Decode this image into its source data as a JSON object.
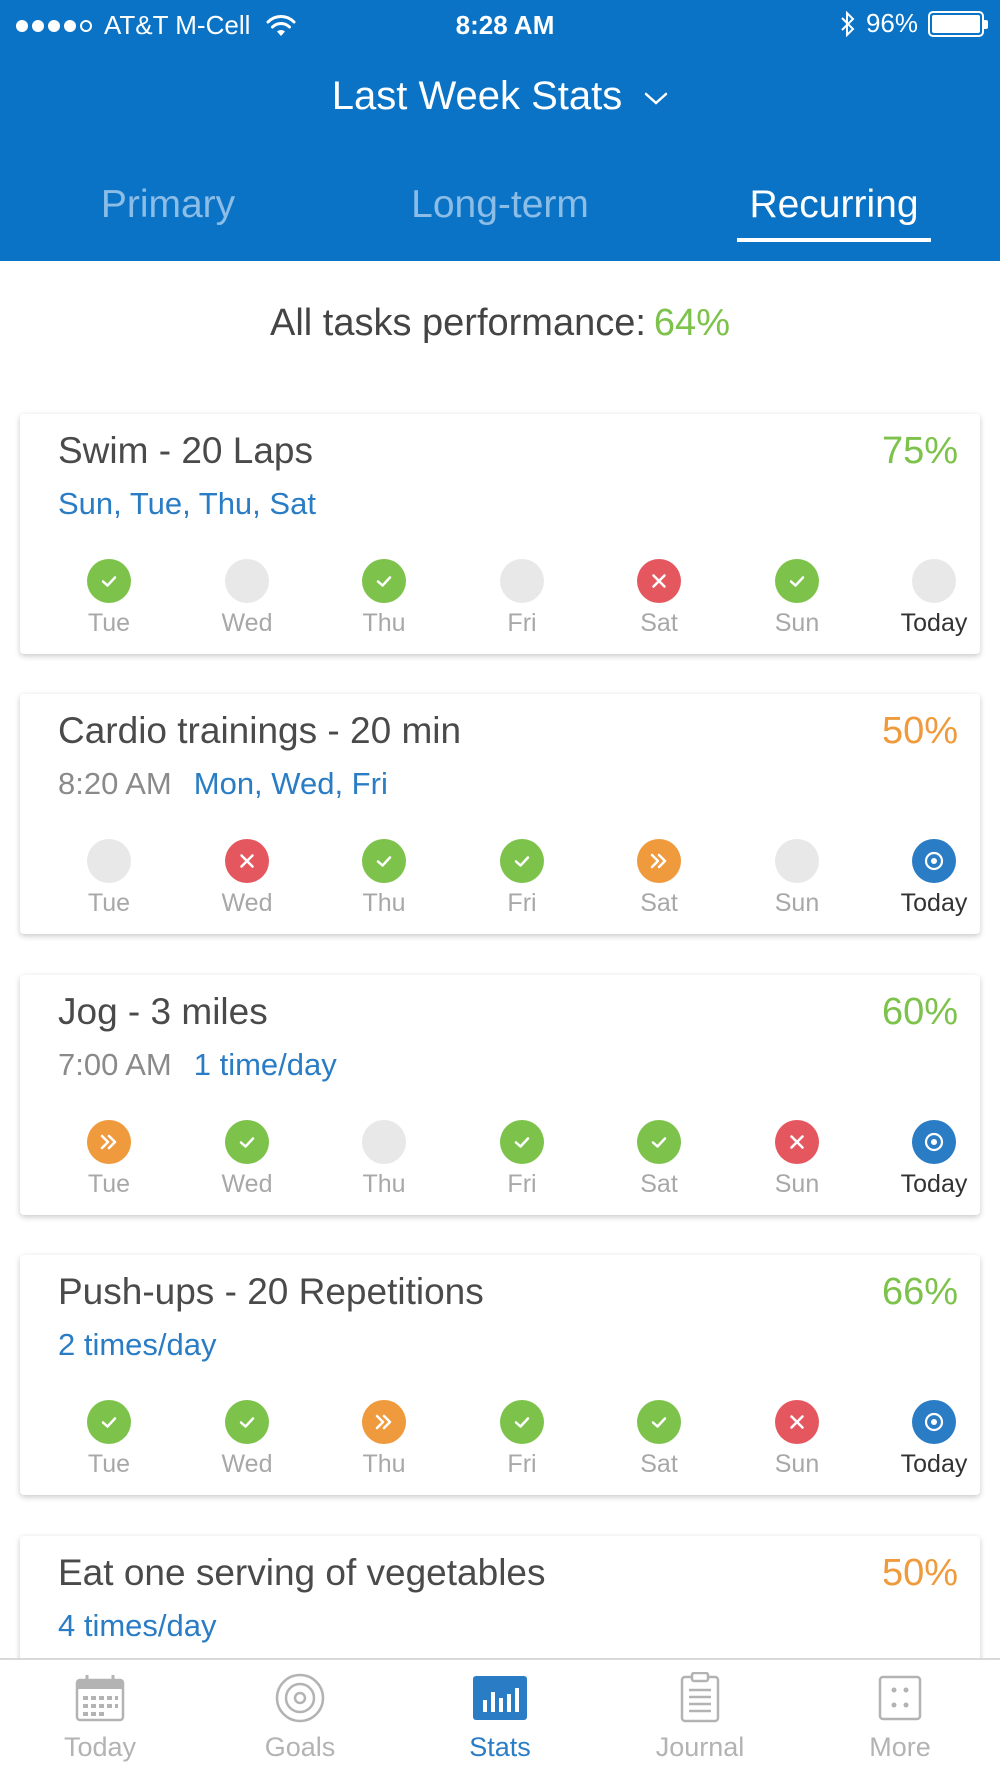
{
  "status_bar": {
    "carrier": "AT&T M-Cell",
    "time": "8:28 AM",
    "battery": "96%",
    "signal_dots_filled": 4
  },
  "header": {
    "title": "Last Week Stats",
    "tabs": [
      {
        "label": "Primary",
        "active": false
      },
      {
        "label": "Long-term",
        "active": false
      },
      {
        "label": "Recurring",
        "active": true
      }
    ]
  },
  "performance": {
    "label": "All tasks performance:",
    "value": "64%"
  },
  "tasks": [
    {
      "title": "Swim - 20 Laps",
      "percent": "75%",
      "percent_color": "#7dc24b",
      "time": "",
      "schedule": "Sun, Tue, Thu, Sat",
      "days": [
        {
          "label": "Tue",
          "status": "done"
        },
        {
          "label": "Wed",
          "status": "none"
        },
        {
          "label": "Thu",
          "status": "done"
        },
        {
          "label": "Fri",
          "status": "none"
        },
        {
          "label": "Sat",
          "status": "missed"
        },
        {
          "label": "Sun",
          "status": "done"
        },
        {
          "label": "Today",
          "status": "none"
        }
      ]
    },
    {
      "title": "Cardio trainings - 20 min",
      "percent": "50%",
      "percent_color": "#ef9a3c",
      "time": "8:20 AM",
      "schedule": "Mon, Wed, Fri",
      "days": [
        {
          "label": "Tue",
          "status": "none"
        },
        {
          "label": "Wed",
          "status": "missed"
        },
        {
          "label": "Thu",
          "status": "done"
        },
        {
          "label": "Fri",
          "status": "done"
        },
        {
          "label": "Sat",
          "status": "skipped"
        },
        {
          "label": "Sun",
          "status": "none"
        },
        {
          "label": "Today",
          "status": "today"
        }
      ]
    },
    {
      "title": "Jog - 3 miles",
      "percent": "60%",
      "percent_color": "#7dc24b",
      "time": "7:00 AM",
      "schedule": "1 time/day",
      "days": [
        {
          "label": "Tue",
          "status": "skipped"
        },
        {
          "label": "Wed",
          "status": "done"
        },
        {
          "label": "Thu",
          "status": "none"
        },
        {
          "label": "Fri",
          "status": "done"
        },
        {
          "label": "Sat",
          "status": "done"
        },
        {
          "label": "Sun",
          "status": "missed"
        },
        {
          "label": "Today",
          "status": "today"
        }
      ]
    },
    {
      "title": "Push-ups - 20 Repetitions",
      "percent": "66%",
      "percent_color": "#7dc24b",
      "time": "",
      "schedule": "2 times/day",
      "days": [
        {
          "label": "Tue",
          "status": "done"
        },
        {
          "label": "Wed",
          "status": "done"
        },
        {
          "label": "Thu",
          "status": "skipped"
        },
        {
          "label": "Fri",
          "status": "done"
        },
        {
          "label": "Sat",
          "status": "done"
        },
        {
          "label": "Sun",
          "status": "missed"
        },
        {
          "label": "Today",
          "status": "today"
        }
      ]
    },
    {
      "title": "Eat one serving of vegetables",
      "percent": "50%",
      "percent_color": "#ef9a3c",
      "time": "",
      "schedule": "4 times/day",
      "days": []
    }
  ],
  "bottom_nav": [
    {
      "label": "Today",
      "icon": "calendar-icon",
      "active": false
    },
    {
      "label": "Goals",
      "icon": "target-icon",
      "active": false
    },
    {
      "label": "Stats",
      "icon": "bar-chart-icon",
      "active": true
    },
    {
      "label": "Journal",
      "icon": "clipboard-icon",
      "active": false
    },
    {
      "label": "More",
      "icon": "grid-icon",
      "active": false
    }
  ]
}
